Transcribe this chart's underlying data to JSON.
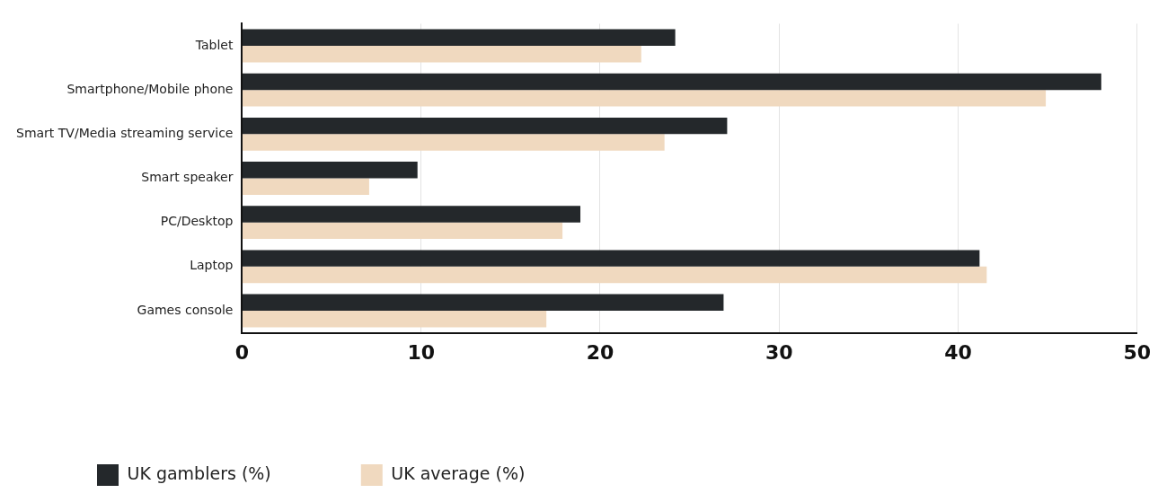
{
  "chart_data": {
    "type": "bar",
    "orientation": "horizontal",
    "categories": [
      "Tablet",
      "Smartphone/Mobile phone",
      "Smart TV/Media streaming service",
      "Smart speaker",
      "PC/Desktop",
      "Laptop",
      "Games console"
    ],
    "series": [
      {
        "name": "UK gamblers (%)",
        "color": "#24282b",
        "values": [
          24.2,
          48.0,
          27.1,
          9.8,
          18.9,
          41.2,
          26.9
        ]
      },
      {
        "name": "UK average (%)",
        "color": "#f0d9bf",
        "values": [
          22.3,
          44.9,
          23.6,
          7.1,
          17.9,
          41.6,
          17.0
        ]
      }
    ],
    "xlim": [
      0,
      50
    ],
    "xticks": [
      0,
      10,
      20,
      30,
      40,
      50
    ],
    "grid": "x",
    "legend": "bottom left"
  }
}
